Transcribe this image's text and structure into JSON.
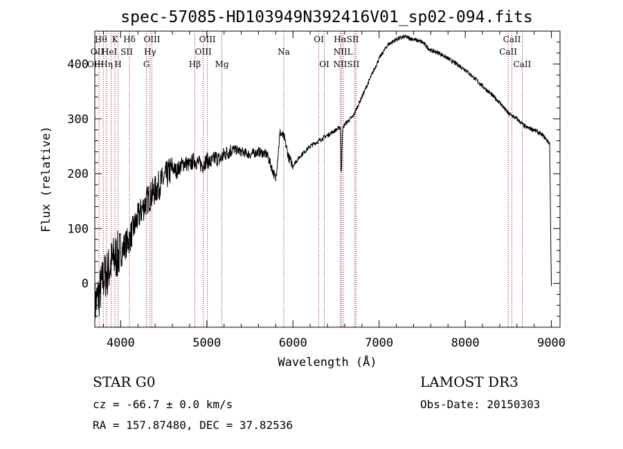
{
  "chart_data": {
    "type": "line",
    "title": "spec-57085-HD103949N392416V01_sp02-094.fits",
    "xlabel": "Wavelength (Å)",
    "ylabel": "Flux (relative)",
    "xlim": [
      3700,
      9100
    ],
    "ylim": [
      -80,
      460
    ],
    "xticks": [
      4000,
      5000,
      6000,
      7000,
      8000,
      9000
    ],
    "yticks": [
      0,
      100,
      200,
      300,
      400
    ],
    "grid": false,
    "line_color": "#8b0000",
    "trace_color": "#000000",
    "series": [
      {
        "name": "flux",
        "x": [
          3700,
          3750,
          3800,
          3850,
          3900,
          3950,
          4000,
          4050,
          4100,
          4150,
          4200,
          4250,
          4300,
          4350,
          4400,
          4450,
          4500,
          4550,
          4600,
          4650,
          4700,
          4750,
          4800,
          4850,
          4900,
          4950,
          5000,
          5050,
          5100,
          5150,
          5200,
          5300,
          5400,
          5500,
          5600,
          5700,
          5800,
          5850,
          5900,
          5950,
          6000,
          6100,
          6200,
          6300,
          6400,
          6500,
          6550,
          6562,
          6575,
          6600,
          6700,
          6800,
          6900,
          7000,
          7100,
          7200,
          7300,
          7400,
          7500,
          7600,
          7700,
          7800,
          7900,
          8000,
          8100,
          8200,
          8300,
          8400,
          8500,
          8600,
          8700,
          8800,
          8900,
          8980,
          8995,
          9000
        ],
        "y": [
          -40,
          -20,
          10,
          20,
          40,
          50,
          55,
          70,
          80,
          100,
          120,
          135,
          150,
          160,
          170,
          180,
          190,
          200,
          210,
          205,
          215,
          220,
          215,
          225,
          220,
          215,
          225,
          220,
          230,
          225,
          235,
          245,
          240,
          235,
          240,
          235,
          190,
          275,
          265,
          230,
          215,
          235,
          250,
          260,
          270,
          280,
          285,
          205,
          280,
          290,
          305,
          340,
          375,
          410,
          435,
          445,
          450,
          445,
          440,
          425,
          420,
          410,
          400,
          390,
          375,
          360,
          345,
          330,
          310,
          300,
          285,
          280,
          270,
          255,
          50,
          -5
        ]
      }
    ],
    "lines": [
      {
        "wl": 3750,
        "label": "Hθ",
        "row": 1
      },
      {
        "wl": 3798,
        "label": "",
        "row": 0
      },
      {
        "wl": 3835,
        "label": "",
        "row": 0
      },
      {
        "wl": 3889,
        "label": "",
        "row": 0
      },
      {
        "wl": 3934,
        "label": "K",
        "row": 1
      },
      {
        "wl": 3969,
        "label": "",
        "row": 0
      },
      {
        "wl": 4102,
        "label": "Hδ",
        "row": 1
      },
      {
        "wl": 4300,
        "label": "",
        "row": 0
      },
      {
        "wl": 4341,
        "label": "",
        "row": 0
      },
      {
        "wl": 4363,
        "label": "OIII",
        "row": 1
      },
      {
        "wl": 4861,
        "label": "",
        "row": 0
      },
      {
        "wl": 4959,
        "label": "",
        "row": 0
      },
      {
        "wl": 5007,
        "label": "OIII",
        "row": 1
      },
      {
        "wl": 5175,
        "label": "",
        "row": 0
      },
      {
        "wl": 5893,
        "label": "",
        "row": 0
      },
      {
        "wl": 6300,
        "label": "OI",
        "row": 1
      },
      {
        "wl": 6364,
        "label": "",
        "row": 0
      },
      {
        "wl": 6548,
        "label": "",
        "row": 0
      },
      {
        "wl": 6563,
        "label": "",
        "row": 0
      },
      {
        "wl": 6583,
        "label": "",
        "row": 0
      },
      {
        "wl": 6716,
        "label": "",
        "row": 0
      },
      {
        "wl": 6731,
        "label": "",
        "row": 0
      },
      {
        "wl": 8498,
        "label": "",
        "row": 0
      },
      {
        "wl": 8542,
        "label": "",
        "row": 0
      },
      {
        "wl": 8662,
        "label": "",
        "row": 0
      }
    ],
    "line_labels": [
      {
        "text": "Hθ",
        "wl": 3770,
        "row": 1
      },
      {
        "text": "K",
        "wl": 3934,
        "row": 1
      },
      {
        "text": "Hδ",
        "wl": 4102,
        "row": 1
      },
      {
        "text": "OIII",
        "wl": 4363,
        "row": 1
      },
      {
        "text": "OIII",
        "wl": 5007,
        "row": 1
      },
      {
        "text": "OI",
        "wl": 6300,
        "row": 1
      },
      {
        "text": "HαSII",
        "wl": 6620,
        "row": 1
      },
      {
        "text": "CaII",
        "wl": 8542,
        "row": 1
      },
      {
        "text": "OII",
        "wl": 3727,
        "row": 2
      },
      {
        "text": "HeI",
        "wl": 3870,
        "row": 2
      },
      {
        "text": "SII",
        "wl": 4070,
        "row": 2
      },
      {
        "text": "Hγ",
        "wl": 4341,
        "row": 2
      },
      {
        "text": "OIII",
        "wl": 4959,
        "row": 2
      },
      {
        "text": "Na",
        "wl": 5893,
        "row": 2
      },
      {
        "text": "NIIL",
        "wl": 6583,
        "row": 2
      },
      {
        "text": "CaII",
        "wl": 8498,
        "row": 2
      },
      {
        "text": "OIIHη",
        "wl": 3760,
        "row": 3
      },
      {
        "text": "H",
        "wl": 3969,
        "row": 3
      },
      {
        "text": "G",
        "wl": 4300,
        "row": 3
      },
      {
        "text": "Hβ",
        "wl": 4861,
        "row": 3
      },
      {
        "text": "Mg",
        "wl": 5175,
        "row": 3
      },
      {
        "text": "OI",
        "wl": 6364,
        "row": 3
      },
      {
        "text": "NIISII",
        "wl": 6620,
        "row": 3
      },
      {
        "text": "CaII",
        "wl": 8662,
        "row": 3
      }
    ]
  },
  "footer": {
    "class": "STAR    G0",
    "survey": "LAMOST DR3",
    "cz": "cz = -66.7 ± 0.0 km/s",
    "obs_date": "Obs-Date: 20150303",
    "radec": "RA = 157.87480, DEC =  37.82536"
  }
}
